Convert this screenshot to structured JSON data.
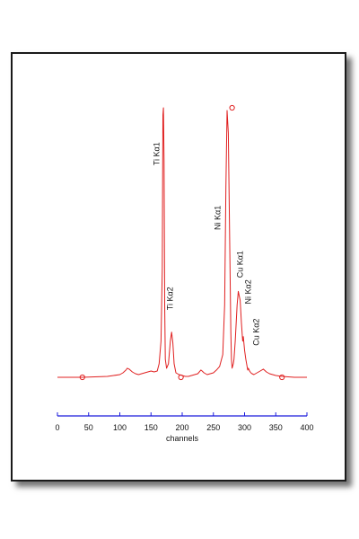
{
  "chart_data": {
    "type": "line",
    "xlabel": "channels",
    "ylabel": "",
    "xlim": [
      0,
      400
    ],
    "x_ticks": [
      0,
      50,
      100,
      150,
      200,
      250,
      300,
      350,
      400
    ],
    "y_ticks": [],
    "grid": false,
    "line_color": "#e02020",
    "axis_color": "#1a1adc",
    "series": [
      {
        "x": [
          0,
          20,
          40,
          60,
          80,
          90,
          100,
          105,
          110,
          112,
          115,
          120,
          125,
          130,
          135,
          140,
          145,
          150,
          155,
          160,
          163,
          166,
          168,
          169,
          170,
          171,
          172,
          173,
          175,
          178,
          181,
          183,
          185,
          187,
          190,
          195,
          200,
          205,
          210,
          215,
          220,
          225,
          230,
          232,
          235,
          240,
          245,
          250,
          255,
          260,
          265,
          268,
          270,
          272,
          274,
          276,
          278,
          279,
          280,
          282,
          283,
          285,
          288,
          290,
          293,
          295,
          297,
          298,
          300,
          302,
          304,
          305,
          306,
          308,
          310,
          312,
          315,
          320,
          325,
          330,
          335,
          340,
          350,
          360,
          380,
          400
        ],
        "y": [
          0,
          0,
          0,
          0.5,
          1,
          2,
          3,
          5,
          8,
          10,
          9,
          6,
          4,
          3,
          4,
          5,
          6,
          7,
          6,
          7,
          15,
          40,
          120,
          290,
          298,
          240,
          80,
          20,
          10,
          15,
          40,
          50,
          38,
          15,
          5,
          3,
          2,
          1,
          1,
          2,
          3,
          4,
          8,
          7,
          5,
          3,
          4,
          5,
          8,
          12,
          25,
          80,
          210,
          295,
          270,
          160,
          50,
          20,
          10,
          15,
          20,
          40,
          80,
          95,
          85,
          60,
          40,
          45,
          30,
          20,
          12,
          8,
          10,
          7,
          5,
          4,
          3,
          5,
          7,
          9,
          6,
          4,
          2,
          1,
          0,
          0
        ]
      }
    ],
    "annotations": [
      {
        "text": "Ti Kα1",
        "x": 163,
        "y": 260
      },
      {
        "text": "Ti Kα2",
        "x": 185,
        "y": 100
      },
      {
        "text": "Ni Kα1",
        "x": 261,
        "y": 190
      },
      {
        "text": "Cu Kα1",
        "x": 297,
        "y": 140
      },
      {
        "text": "Ni Kα2",
        "x": 310,
        "y": 108
      },
      {
        "text": "Cu Kα2",
        "x": 323,
        "y": 65
      }
    ],
    "markers": [
      {
        "x": 40,
        "y": 0
      },
      {
        "x": 198,
        "y": 0
      },
      {
        "x": 280,
        "y": 298
      },
      {
        "x": 360,
        "y": 0
      }
    ]
  }
}
